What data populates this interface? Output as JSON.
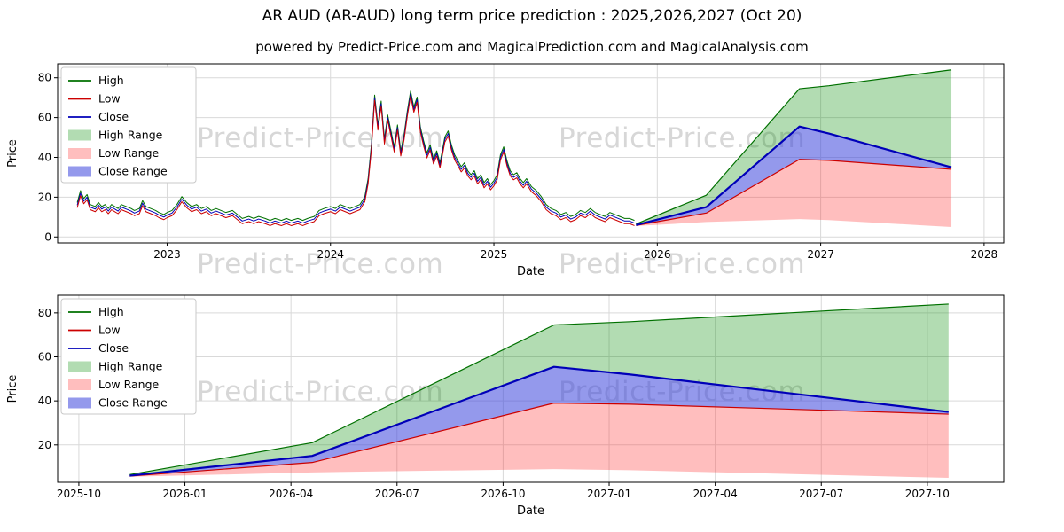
{
  "title": "AR AUD (AR-AUD) long term price prediction : 2025,2026,2027 (Oct 20)",
  "subtitle": "powered by Predict-Price.com and MagicalPrediction.com and MagicalAnalysis.com",
  "watermark": {
    "text": "Predict-Price.com"
  },
  "colors": {
    "grid": "#d9d9d9",
    "frame": "#000000",
    "high": "#007000",
    "low": "#cc0000",
    "close": "#0000b8",
    "high_range": "rgba(0,140,0,0.30)",
    "low_range": "rgba(255,40,40,0.30)",
    "close_range": "rgba(60,70,220,0.55)",
    "watermark": "#d7d7d7"
  },
  "legend": [
    {
      "label": "High",
      "swatch": "line",
      "color": "#007000"
    },
    {
      "label": "Low",
      "swatch": "line",
      "color": "#cc0000"
    },
    {
      "label": "Close",
      "swatch": "line",
      "color": "#0000b8"
    },
    {
      "label": "High Range",
      "swatch": "patch",
      "color": "rgba(0,140,0,0.30)"
    },
    {
      "label": "Low Range",
      "swatch": "patch",
      "color": "rgba(255,40,40,0.30)"
    },
    {
      "label": "Close Range",
      "swatch": "patch",
      "color": "rgba(60,70,220,0.55)"
    }
  ],
  "chart_data": [
    {
      "type": "line",
      "title": "AR AUD full history with forecast ranges",
      "xlabel": "Date",
      "ylabel": "Price",
      "grid": true,
      "legend_position": "upper left",
      "xlim": [
        2022.33,
        2028.12
      ],
      "ylim": [
        -3,
        87
      ],
      "xticks": [
        {
          "v": 2023,
          "label": "2023"
        },
        {
          "v": 2024,
          "label": "2024"
        },
        {
          "v": 2025,
          "label": "2025"
        },
        {
          "v": 2026,
          "label": "2026"
        },
        {
          "v": 2027,
          "label": "2027"
        },
        {
          "v": 2028,
          "label": "2028"
        }
      ],
      "yticks": [
        0,
        20,
        40,
        60,
        80
      ],
      "show_history": true,
      "history": {
        "high_offset": 1.3,
        "low_offset": 1.3,
        "x": [
          2022.45,
          2022.47,
          2022.49,
          2022.51,
          2022.53,
          2022.56,
          2022.58,
          2022.6,
          2022.62,
          2022.64,
          2022.66,
          2022.68,
          2022.7,
          2022.72,
          2022.75,
          2022.78,
          2022.8,
          2022.83,
          2022.85,
          2022.87,
          2022.9,
          2022.93,
          2022.95,
          2022.98,
          2023.0,
          2023.03,
          2023.06,
          2023.09,
          2023.12,
          2023.15,
          2023.18,
          2023.21,
          2023.24,
          2023.27,
          2023.3,
          2023.33,
          2023.36,
          2023.4,
          2023.43,
          2023.46,
          2023.5,
          2023.53,
          2023.56,
          2023.6,
          2023.63,
          2023.66,
          2023.7,
          2023.73,
          2023.76,
          2023.8,
          2023.83,
          2023.86,
          2023.9,
          2023.93,
          2023.96,
          2024.0,
          2024.03,
          2024.06,
          2024.09,
          2024.12,
          2024.15,
          2024.18,
          2024.21,
          2024.23,
          2024.25,
          2024.27,
          2024.29,
          2024.31,
          2024.33,
          2024.35,
          2024.37,
          2024.39,
          2024.41,
          2024.43,
          2024.45,
          2024.47,
          2024.49,
          2024.51,
          2024.53,
          2024.55,
          2024.57,
          2024.59,
          2024.61,
          2024.63,
          2024.65,
          2024.67,
          2024.7,
          2024.72,
          2024.74,
          2024.76,
          2024.78,
          2024.8,
          2024.82,
          2024.84,
          2024.86,
          2024.88,
          2024.9,
          2024.92,
          2024.94,
          2024.96,
          2024.98,
          2025.0,
          2025.02,
          2025.04,
          2025.06,
          2025.08,
          2025.1,
          2025.12,
          2025.14,
          2025.16,
          2025.18,
          2025.2,
          2025.23,
          2025.26,
          2025.29,
          2025.32,
          2025.35,
          2025.38,
          2025.41,
          2025.44,
          2025.47,
          2025.5,
          2025.53,
          2025.56,
          2025.59,
          2025.62,
          2025.65,
          2025.68,
          2025.71,
          2025.74,
          2025.77,
          2025.8,
          2025.83,
          2025.86
        ],
        "close": [
          16,
          22,
          18,
          20,
          15,
          14,
          16,
          14,
          15,
          13,
          15,
          14,
          13,
          15,
          14,
          13,
          12,
          13,
          17,
          14,
          13,
          12,
          11,
          10,
          11,
          12,
          15,
          19,
          16,
          14,
          15,
          13,
          14,
          12,
          13,
          12,
          11,
          12,
          10,
          8,
          9,
          8,
          9,
          8,
          7,
          8,
          7,
          8,
          7,
          8,
          7,
          8,
          9,
          12,
          13,
          14,
          13,
          15,
          14,
          13,
          14,
          15,
          19,
          28,
          45,
          70,
          55,
          67,
          48,
          60,
          52,
          44,
          55,
          42,
          50,
          62,
          72,
          64,
          69,
          54,
          47,
          41,
          45,
          38,
          42,
          36,
          49,
          52,
          45,
          40,
          37,
          34,
          36,
          32,
          30,
          32,
          28,
          30,
          26,
          28,
          25,
          27,
          30,
          40,
          44,
          37,
          32,
          30,
          31,
          28,
          26,
          28,
          24,
          22,
          19,
          15,
          13,
          12,
          10,
          11,
          9,
          10,
          12,
          11,
          13,
          11,
          10,
          9,
          11,
          10,
          9,
          8,
          8,
          7
        ]
      },
      "forecast": {
        "x": [
          2025.87,
          2026.3,
          2026.87,
          2027.05,
          2027.8
        ],
        "high": [
          6.5,
          21,
          74.5,
          76,
          84
        ],
        "close": [
          6,
          15,
          55.5,
          52,
          35
        ],
        "low": [
          5.8,
          12,
          39,
          38.5,
          34
        ],
        "low_bottom": [
          5.5,
          7.5,
          9,
          8.5,
          5
        ]
      }
    },
    {
      "type": "line",
      "title": "AR AUD forecast detail 2025-10 to 2027-10",
      "xlabel": "Date",
      "ylabel": "Price",
      "grid": true,
      "legend_position": "upper left",
      "xlim": [
        2025.7,
        2027.93
      ],
      "ylim": [
        3,
        88
      ],
      "xticks": [
        {
          "v": 2025.75,
          "label": "2025-10"
        },
        {
          "v": 2026.0,
          "label": "2026-01"
        },
        {
          "v": 2026.25,
          "label": "2026-04"
        },
        {
          "v": 2026.5,
          "label": "2026-07"
        },
        {
          "v": 2026.75,
          "label": "2026-10"
        },
        {
          "v": 2027.0,
          "label": "2027-01"
        },
        {
          "v": 2027.25,
          "label": "2027-04"
        },
        {
          "v": 2027.5,
          "label": "2027-07"
        },
        {
          "v": 2027.75,
          "label": "2027-10"
        }
      ],
      "yticks": [
        20,
        40,
        60,
        80
      ],
      "show_history": false,
      "forecast": {
        "x": [
          2025.87,
          2026.3,
          2026.87,
          2027.05,
          2027.8
        ],
        "high": [
          6.5,
          21,
          74.5,
          76,
          84
        ],
        "close": [
          6,
          15,
          55.5,
          52,
          35
        ],
        "low": [
          5.8,
          12,
          39,
          38.5,
          34
        ],
        "low_bottom": [
          5.5,
          7.5,
          9,
          8.5,
          5
        ]
      }
    }
  ]
}
